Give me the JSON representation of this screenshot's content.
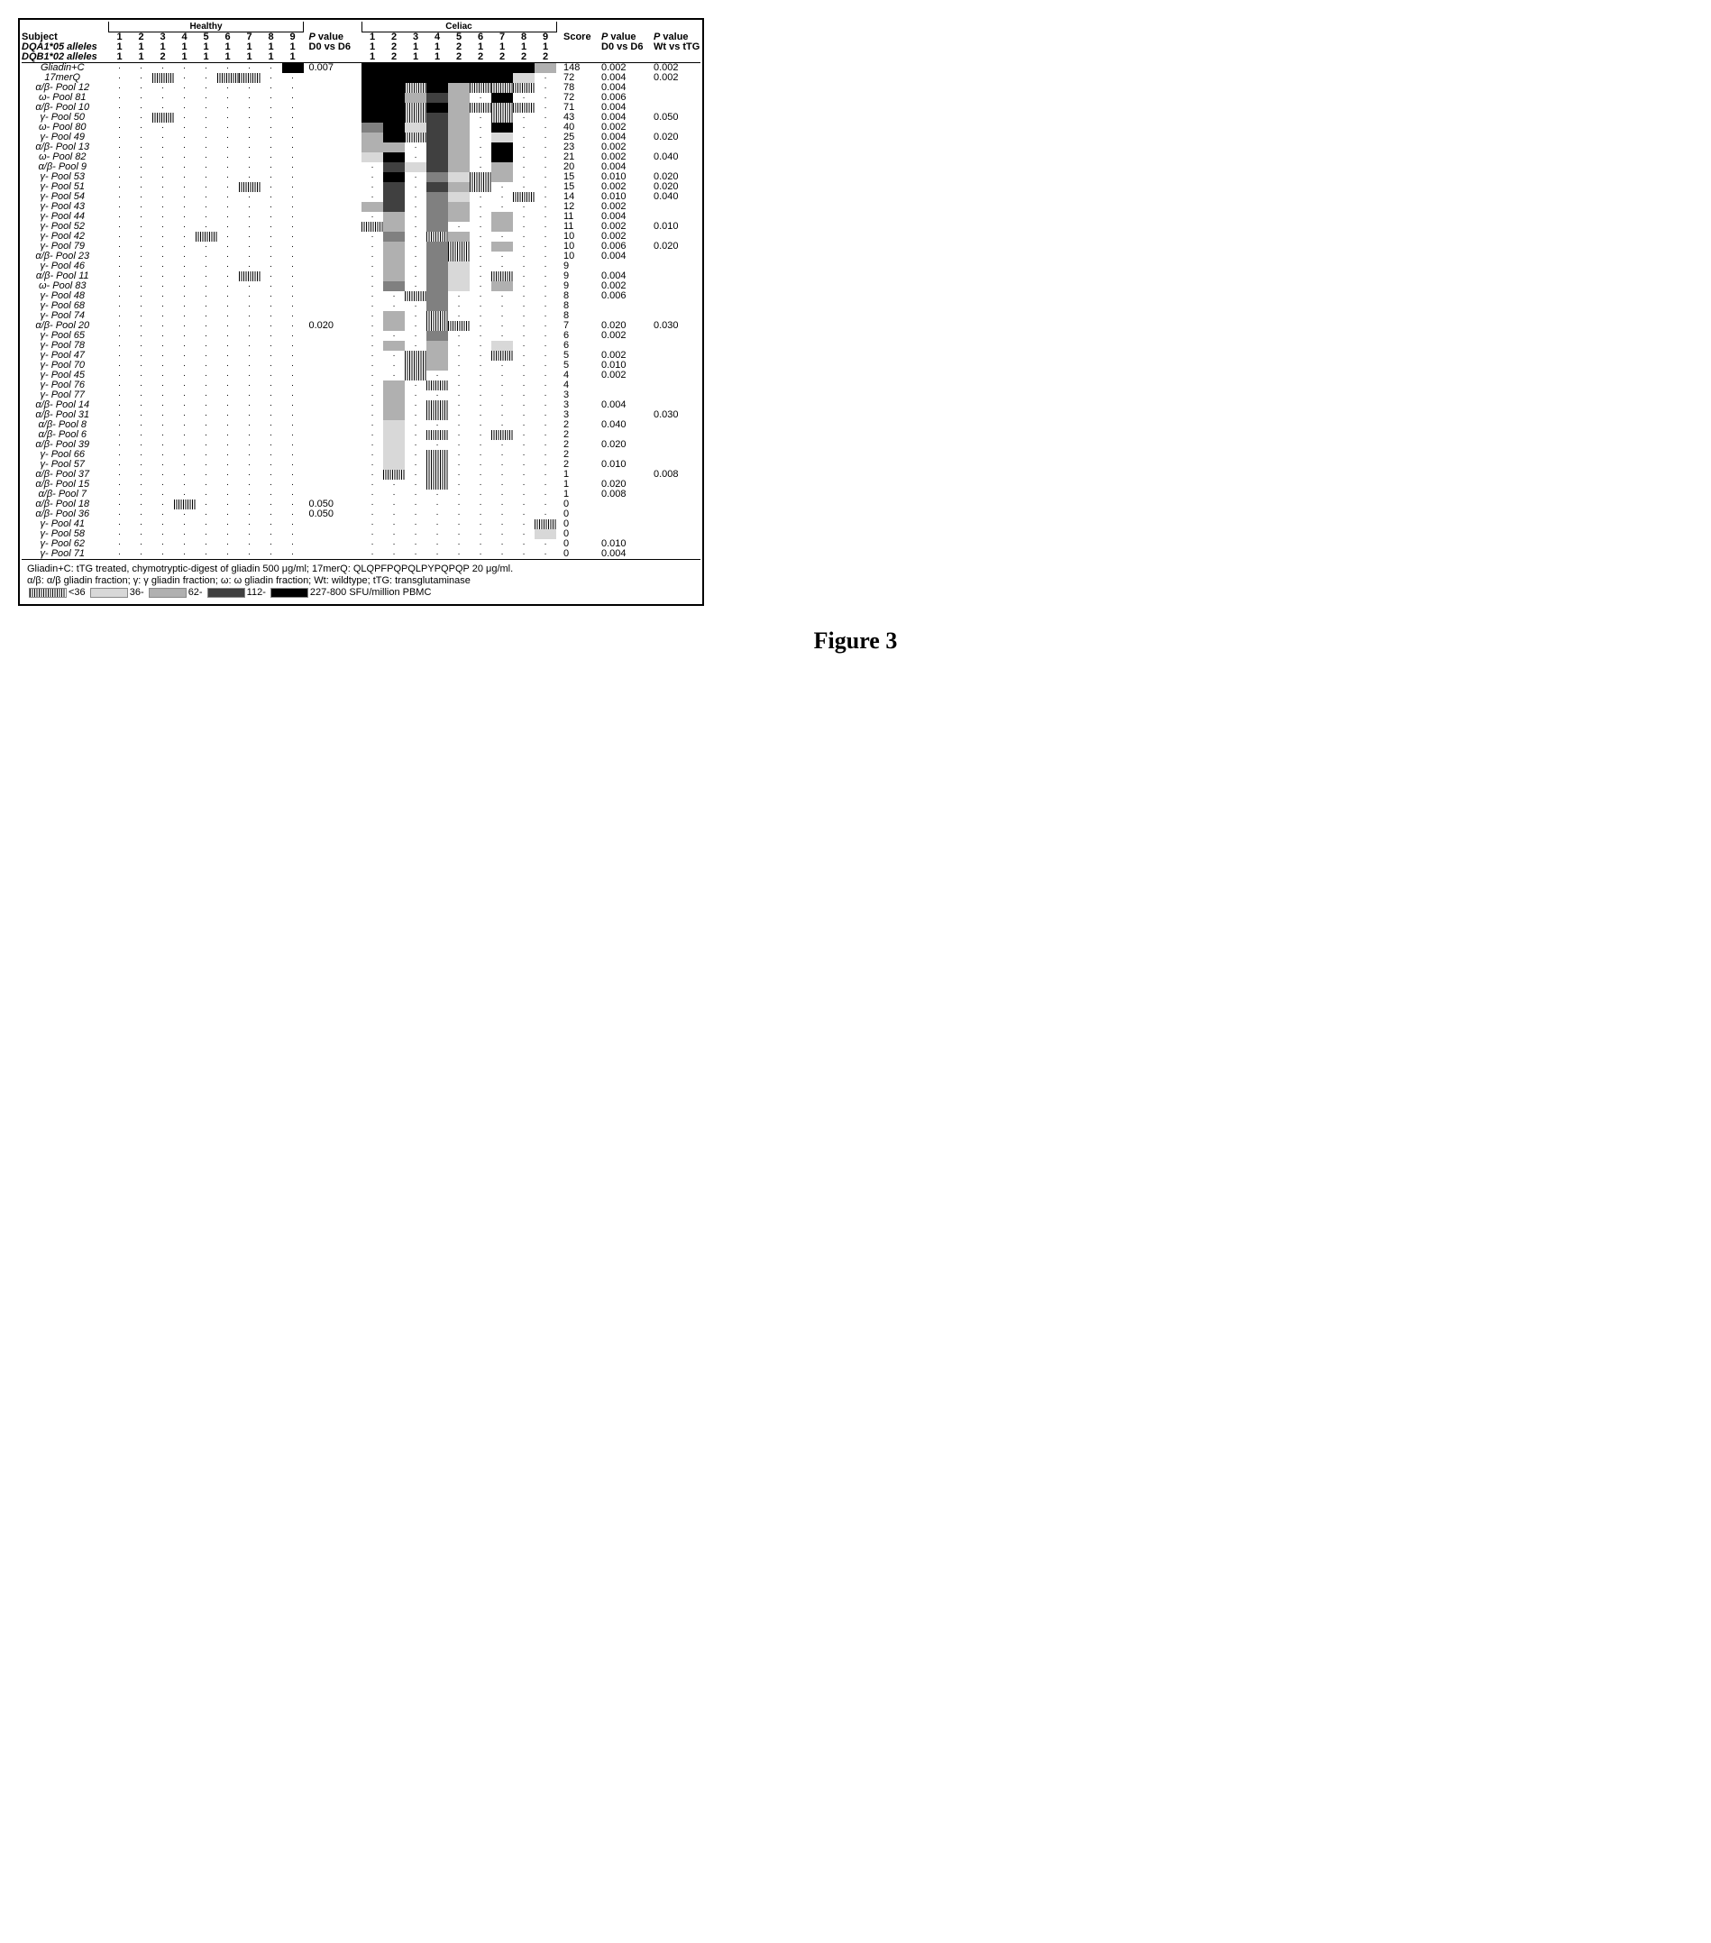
{
  "figure_label": "Figure 3",
  "shade_levels": {
    "0": "#ffffff",
    "1": "#f0f0f0",
    "2": "#d8d8d8",
    "3": "#b0b0b0",
    "4": "#808080",
    "5": "#404040",
    "6": "#000000"
  },
  "hatch_pattern": "repeating-linear-gradient(90deg, #000 0, #000 1px, #fff 1px, #fff 2.5px)",
  "groups": {
    "healthy": {
      "label": "Healthy",
      "subjects": [
        "1",
        "2",
        "3",
        "4",
        "5",
        "6",
        "7",
        "8",
        "9"
      ],
      "dqa": [
        "1",
        "1",
        "1",
        "1",
        "1",
        "1",
        "1",
        "1",
        "1"
      ],
      "dqb": [
        "1",
        "1",
        "2",
        "1",
        "1",
        "1",
        "1",
        "1",
        "1"
      ]
    },
    "celiac": {
      "label": "Celiac",
      "subjects": [
        "1",
        "2",
        "3",
        "4",
        "5",
        "6",
        "7",
        "8",
        "9"
      ],
      "dqa": [
        "1",
        "2",
        "1",
        "1",
        "2",
        "1",
        "1",
        "1",
        "1"
      ],
      "dqb": [
        "1",
        "2",
        "1",
        "1",
        "2",
        "2",
        "2",
        "2",
        "2"
      ]
    }
  },
  "header_rows": {
    "subject": "Subject",
    "dqa": "DQA1*05 alleles",
    "dqb": "DQB1*02 alleles"
  },
  "column_headers": {
    "score": "Score",
    "pval_healthy": "P value\nD0 vs D6",
    "pval_celiac_d0d6": "P value\nD0 vs D6",
    "pval_celiac_wt": "P value\nWt vs tTG"
  },
  "rows": [
    {
      "label": "Gliadin+C",
      "h": [
        0,
        0,
        0,
        0,
        0,
        0,
        0,
        0,
        6
      ],
      "hp": "0.007",
      "c": [
        6,
        6,
        6,
        6,
        6,
        6,
        6,
        6,
        3
      ],
      "score": "148",
      "p1": "0.002",
      "p2": "0.002"
    },
    {
      "label": "17merQ",
      "h": [
        0,
        0,
        "H",
        0,
        0,
        "H",
        "H",
        0,
        0
      ],
      "hp": "",
      "c": [
        6,
        6,
        6,
        6,
        6,
        6,
        6,
        2,
        0
      ],
      "score": "72",
      "p1": "0.004",
      "p2": "0.002"
    },
    {
      "label": "α/β- Pool 12",
      "h": [
        0,
        0,
        0,
        0,
        0,
        0,
        0,
        0,
        0
      ],
      "hp": "",
      "c": [
        6,
        6,
        "H",
        6,
        3,
        "H",
        "H",
        "H",
        0
      ],
      "score": "78",
      "p1": "0.004",
      "p2": ""
    },
    {
      "label": "ω- Pool 81",
      "h": [
        0,
        0,
        0,
        0,
        0,
        0,
        0,
        0,
        0
      ],
      "hp": "",
      "c": [
        6,
        6,
        3,
        5,
        3,
        0,
        6,
        0,
        0
      ],
      "score": "72",
      "p1": "0.006",
      "p2": ""
    },
    {
      "label": "α/β- Pool 10",
      "h": [
        0,
        0,
        0,
        0,
        0,
        0,
        0,
        0,
        0
      ],
      "hp": "",
      "c": [
        6,
        6,
        "H",
        6,
        3,
        "H",
        "H",
        "H",
        0
      ],
      "score": "71",
      "p1": "0.004",
      "p2": ""
    },
    {
      "label": "γ- Pool 50",
      "h": [
        0,
        0,
        "H",
        0,
        0,
        0,
        0,
        0,
        0
      ],
      "hp": "",
      "c": [
        6,
        6,
        "H",
        5,
        3,
        0,
        "H",
        0,
        0
      ],
      "score": "43",
      "p1": "0.004",
      "p2": "0.050"
    },
    {
      "label": "ω- Pool 80",
      "h": [
        0,
        0,
        0,
        0,
        0,
        0,
        0,
        0,
        0
      ],
      "hp": "",
      "c": [
        4,
        6,
        2,
        5,
        3,
        0,
        6,
        0,
        0
      ],
      "score": "40",
      "p1": "0.002",
      "p2": ""
    },
    {
      "label": "γ- Pool 49",
      "h": [
        0,
        0,
        0,
        0,
        0,
        0,
        0,
        0,
        0
      ],
      "hp": "",
      "c": [
        3,
        6,
        "H",
        5,
        3,
        0,
        2,
        0,
        0
      ],
      "score": "25",
      "p1": "0.004",
      "p2": "0.020"
    },
    {
      "label": "α/β- Pool 13",
      "h": [
        0,
        0,
        0,
        0,
        0,
        0,
        0,
        0,
        0
      ],
      "hp": "",
      "c": [
        3,
        3,
        0,
        5,
        3,
        0,
        6,
        0,
        0
      ],
      "score": "23",
      "p1": "0.002",
      "p2": ""
    },
    {
      "label": "ω- Pool 82",
      "h": [
        0,
        0,
        0,
        0,
        0,
        0,
        0,
        0,
        0
      ],
      "hp": "",
      "c": [
        2,
        6,
        0,
        5,
        3,
        0,
        6,
        0,
        0
      ],
      "score": "21",
      "p1": "0.002",
      "p2": "0.040"
    },
    {
      "label": "α/β- Pool 9",
      "h": [
        0,
        0,
        0,
        0,
        0,
        0,
        0,
        0,
        0
      ],
      "hp": "",
      "c": [
        0,
        5,
        2,
        5,
        3,
        0,
        3,
        0,
        0
      ],
      "score": "20",
      "p1": "0.004",
      "p2": ""
    },
    {
      "label": "γ- Pool 53",
      "h": [
        0,
        0,
        0,
        0,
        0,
        0,
        0,
        0,
        0
      ],
      "hp": "",
      "c": [
        0,
        6,
        0,
        4,
        2,
        "H",
        3,
        0,
        0
      ],
      "score": "15",
      "p1": "0.010",
      "p2": "0.020"
    },
    {
      "label": "γ- Pool 51",
      "h": [
        0,
        0,
        0,
        0,
        0,
        0,
        "H",
        0,
        0
      ],
      "hp": "",
      "c": [
        0,
        5,
        0,
        5,
        3,
        "H",
        0,
        0,
        0
      ],
      "score": "15",
      "p1": "0.002",
      "p2": "0.020"
    },
    {
      "label": "γ- Pool 54",
      "h": [
        0,
        0,
        0,
        0,
        0,
        0,
        0,
        0,
        0
      ],
      "hp": "",
      "c": [
        0,
        5,
        0,
        4,
        2,
        0,
        0,
        "H",
        0
      ],
      "score": "14",
      "p1": "0.010",
      "p2": "0.040"
    },
    {
      "label": "γ- Pool 43",
      "h": [
        0,
        0,
        0,
        0,
        0,
        0,
        0,
        0,
        0
      ],
      "hp": "",
      "c": [
        3,
        5,
        0,
        4,
        3,
        0,
        0,
        0,
        0
      ],
      "score": "12",
      "p1": "0.002",
      "p2": ""
    },
    {
      "label": "γ- Pool 44",
      "h": [
        0,
        0,
        0,
        0,
        0,
        0,
        0,
        0,
        0
      ],
      "hp": "",
      "c": [
        0,
        3,
        0,
        4,
        3,
        0,
        3,
        0,
        0
      ],
      "score": "11",
      "p1": "0.004",
      "p2": ""
    },
    {
      "label": "γ- Pool 52",
      "h": [
        0,
        0,
        0,
        0,
        0,
        0,
        0,
        0,
        0
      ],
      "hp": "",
      "c": [
        "H",
        3,
        0,
        4,
        0,
        0,
        3,
        0,
        0
      ],
      "score": "11",
      "p1": "0.002",
      "p2": "0.010"
    },
    {
      "label": "γ- Pool 42",
      "h": [
        0,
        0,
        0,
        0,
        "H",
        0,
        0,
        0,
        0
      ],
      "hp": "",
      "c": [
        0,
        4,
        0,
        "H",
        3,
        0,
        0,
        0,
        0
      ],
      "score": "10",
      "p1": "0.002",
      "p2": ""
    },
    {
      "label": "γ- Pool 79",
      "h": [
        0,
        0,
        0,
        0,
        0,
        0,
        0,
        0,
        0
      ],
      "hp": "",
      "c": [
        0,
        3,
        0,
        4,
        "H",
        0,
        3,
        0,
        0
      ],
      "score": "10",
      "p1": "0.006",
      "p2": "0.020"
    },
    {
      "label": "α/β- Pool 23",
      "h": [
        0,
        0,
        0,
        0,
        0,
        0,
        0,
        0,
        0
      ],
      "hp": "",
      "c": [
        0,
        3,
        0,
        4,
        "H",
        0,
        0,
        0,
        0
      ],
      "score": "10",
      "p1": "0.004",
      "p2": ""
    },
    {
      "label": "γ- Pool 46",
      "h": [
        0,
        0,
        0,
        0,
        0,
        0,
        0,
        0,
        0
      ],
      "hp": "",
      "c": [
        0,
        3,
        0,
        4,
        2,
        0,
        0,
        0,
        0
      ],
      "score": "9",
      "p1": "",
      "p2": ""
    },
    {
      "label": "α/β- Pool 11",
      "h": [
        0,
        0,
        0,
        0,
        0,
        0,
        "H",
        0,
        0
      ],
      "hp": "",
      "c": [
        0,
        3,
        0,
        4,
        2,
        0,
        "H",
        0,
        0
      ],
      "score": "9",
      "p1": "0.004",
      "p2": ""
    },
    {
      "label": "ω- Pool 83",
      "h": [
        0,
        0,
        0,
        0,
        0,
        0,
        0,
        0,
        0
      ],
      "hp": "",
      "c": [
        0,
        4,
        0,
        4,
        2,
        0,
        3,
        0,
        0
      ],
      "score": "9",
      "p1": "0.002",
      "p2": ""
    },
    {
      "label": "γ- Pool 48",
      "h": [
        0,
        0,
        0,
        0,
        0,
        0,
        0,
        0,
        0
      ],
      "hp": "",
      "c": [
        0,
        0,
        "H",
        4,
        0,
        0,
        0,
        0,
        0
      ],
      "score": "8",
      "p1": "0.006",
      "p2": ""
    },
    {
      "label": "γ- Pool 68",
      "h": [
        0,
        0,
        0,
        0,
        0,
        0,
        0,
        0,
        0
      ],
      "hp": "",
      "c": [
        0,
        0,
        0,
        4,
        0,
        0,
        0,
        0,
        0
      ],
      "score": "8",
      "p1": "",
      "p2": ""
    },
    {
      "label": "γ- Pool 74",
      "h": [
        0,
        0,
        0,
        0,
        0,
        0,
        0,
        0,
        0
      ],
      "hp": "",
      "c": [
        0,
        3,
        0,
        "H",
        0,
        0,
        0,
        0,
        0
      ],
      "score": "8",
      "p1": "",
      "p2": ""
    },
    {
      "label": "α/β- Pool 20",
      "h": [
        0,
        0,
        0,
        0,
        0,
        0,
        0,
        0,
        0
      ],
      "hp": "0.020",
      "c": [
        0,
        3,
        0,
        "H",
        "H",
        0,
        0,
        0,
        0
      ],
      "score": "7",
      "p1": "0.020",
      "p2": "0.030"
    },
    {
      "label": "γ- Pool 65",
      "h": [
        0,
        0,
        0,
        0,
        0,
        0,
        0,
        0,
        0
      ],
      "hp": "",
      "c": [
        0,
        0,
        0,
        4,
        0,
        0,
        0,
        0,
        0
      ],
      "score": "6",
      "p1": "0.002",
      "p2": ""
    },
    {
      "label": "γ- Pool 78",
      "h": [
        0,
        0,
        0,
        0,
        0,
        0,
        0,
        0,
        0
      ],
      "hp": "",
      "c": [
        0,
        3,
        0,
        3,
        0,
        0,
        2,
        0,
        0
      ],
      "score": "6",
      "p1": "",
      "p2": ""
    },
    {
      "label": "γ- Pool 47",
      "h": [
        0,
        0,
        0,
        0,
        0,
        0,
        0,
        0,
        0
      ],
      "hp": "",
      "c": [
        0,
        0,
        "H",
        3,
        0,
        0,
        "H",
        0,
        0
      ],
      "score": "5",
      "p1": "0.002",
      "p2": ""
    },
    {
      "label": "γ- Pool 70",
      "h": [
        0,
        0,
        0,
        0,
        0,
        0,
        0,
        0,
        0
      ],
      "hp": "",
      "c": [
        0,
        0,
        "H",
        3,
        0,
        0,
        0,
        0,
        0
      ],
      "score": "5",
      "p1": "0.010",
      "p2": ""
    },
    {
      "label": "γ- Pool 45",
      "h": [
        0,
        0,
        0,
        0,
        0,
        0,
        0,
        0,
        0
      ],
      "hp": "",
      "c": [
        0,
        0,
        "H",
        0,
        0,
        0,
        0,
        0,
        0
      ],
      "score": "4",
      "p1": "0.002",
      "p2": ""
    },
    {
      "label": "γ- Pool 76",
      "h": [
        0,
        0,
        0,
        0,
        0,
        0,
        0,
        0,
        0
      ],
      "hp": "",
      "c": [
        0,
        3,
        0,
        "H",
        0,
        0,
        0,
        0,
        0
      ],
      "score": "4",
      "p1": "",
      "p2": ""
    },
    {
      "label": "γ- Pool 77",
      "h": [
        0,
        0,
        0,
        0,
        0,
        0,
        0,
        0,
        0
      ],
      "hp": "",
      "c": [
        0,
        3,
        0,
        0,
        0,
        0,
        0,
        0,
        0
      ],
      "score": "3",
      "p1": "",
      "p2": ""
    },
    {
      "label": "α/β- Pool 14",
      "h": [
        0,
        0,
        0,
        0,
        0,
        0,
        0,
        0,
        0
      ],
      "hp": "",
      "c": [
        0,
        3,
        0,
        "H",
        0,
        0,
        0,
        0,
        0
      ],
      "score": "3",
      "p1": "0.004",
      "p2": ""
    },
    {
      "label": "α/β- Pool 31",
      "h": [
        0,
        0,
        0,
        0,
        0,
        0,
        0,
        0,
        0
      ],
      "hp": "",
      "c": [
        0,
        3,
        0,
        "H",
        0,
        0,
        0,
        0,
        0
      ],
      "score": "3",
      "p1": "",
      "p2": "0.030"
    },
    {
      "label": "α/β- Pool 8",
      "h": [
        0,
        0,
        0,
        0,
        0,
        0,
        0,
        0,
        0
      ],
      "hp": "",
      "c": [
        0,
        2,
        0,
        0,
        0,
        0,
        0,
        0,
        0
      ],
      "score": "2",
      "p1": "0.040",
      "p2": ""
    },
    {
      "label": "α/β- Pool 6",
      "h": [
        0,
        0,
        0,
        0,
        0,
        0,
        0,
        0,
        0
      ],
      "hp": "",
      "c": [
        0,
        2,
        0,
        "H",
        0,
        0,
        "H",
        0,
        0
      ],
      "score": "2",
      "p1": "",
      "p2": ""
    },
    {
      "label": "α/β- Pool 39",
      "h": [
        0,
        0,
        0,
        0,
        0,
        0,
        0,
        0,
        0
      ],
      "hp": "",
      "c": [
        0,
        2,
        0,
        0,
        0,
        0,
        0,
        0,
        0
      ],
      "score": "2",
      "p1": "0.020",
      "p2": ""
    },
    {
      "label": "γ- Pool 66",
      "h": [
        0,
        0,
        0,
        0,
        0,
        0,
        0,
        0,
        0
      ],
      "hp": "",
      "c": [
        0,
        2,
        0,
        "H",
        0,
        0,
        0,
        0,
        0
      ],
      "score": "2",
      "p1": "",
      "p2": ""
    },
    {
      "label": "γ- Pool 57",
      "h": [
        0,
        0,
        0,
        0,
        0,
        0,
        0,
        0,
        0
      ],
      "hp": "",
      "c": [
        0,
        2,
        0,
        "H",
        0,
        0,
        0,
        0,
        0
      ],
      "score": "2",
      "p1": "0.010",
      "p2": ""
    },
    {
      "label": "α/β- Pool 37",
      "h": [
        0,
        0,
        0,
        0,
        0,
        0,
        0,
        0,
        0
      ],
      "hp": "",
      "c": [
        0,
        "H",
        0,
        "H",
        0,
        0,
        0,
        0,
        0
      ],
      "score": "1",
      "p1": "",
      "p2": "0.008"
    },
    {
      "label": "α/β- Pool 15",
      "h": [
        0,
        0,
        0,
        0,
        0,
        0,
        0,
        0,
        0
      ],
      "hp": "",
      "c": [
        0,
        0,
        0,
        "H",
        0,
        0,
        0,
        0,
        0
      ],
      "score": "1",
      "p1": "0.020",
      "p2": ""
    },
    {
      "label": "α/β- Pool 7",
      "h": [
        0,
        0,
        0,
        0,
        0,
        0,
        0,
        0,
        0
      ],
      "hp": "",
      "c": [
        0,
        0,
        0,
        0,
        0,
        0,
        0,
        0,
        0
      ],
      "score": "1",
      "p1": "0.008",
      "p2": ""
    },
    {
      "label": "α/β- Pool 18",
      "h": [
        0,
        0,
        0,
        "H",
        0,
        0,
        0,
        0,
        0
      ],
      "hp": "0.050",
      "c": [
        0,
        0,
        0,
        0,
        0,
        0,
        0,
        0,
        0
      ],
      "score": "0",
      "p1": "",
      "p2": ""
    },
    {
      "label": "α/β- Pool 36",
      "h": [
        0,
        0,
        0,
        0,
        0,
        0,
        0,
        0,
        0
      ],
      "hp": "0.050",
      "c": [
        0,
        0,
        0,
        0,
        0,
        0,
        0,
        0,
        0
      ],
      "score": "0",
      "p1": "",
      "p2": ""
    },
    {
      "label": "γ- Pool 41",
      "h": [
        0,
        0,
        0,
        0,
        0,
        0,
        0,
        0,
        0
      ],
      "hp": "",
      "c": [
        0,
        0,
        0,
        0,
        0,
        0,
        0,
        0,
        "H"
      ],
      "score": "0",
      "p1": "",
      "p2": ""
    },
    {
      "label": "γ- Pool 58",
      "h": [
        0,
        0,
        0,
        0,
        0,
        0,
        0,
        0,
        0
      ],
      "hp": "",
      "c": [
        0,
        0,
        0,
        0,
        0,
        0,
        0,
        0,
        2
      ],
      "score": "0",
      "p1": "",
      "p2": ""
    },
    {
      "label": "γ- Pool 62",
      "h": [
        0,
        0,
        0,
        0,
        0,
        0,
        0,
        0,
        0
      ],
      "hp": "",
      "c": [
        0,
        0,
        0,
        0,
        0,
        0,
        0,
        0,
        0
      ],
      "score": "0",
      "p1": "0.010",
      "p2": ""
    },
    {
      "label": "γ- Pool 71",
      "h": [
        0,
        0,
        0,
        0,
        0,
        0,
        0,
        0,
        0
      ],
      "hp": "",
      "c": [
        0,
        0,
        0,
        0,
        0,
        0,
        0,
        0,
        0
      ],
      "score": "0",
      "p1": "0.004",
      "p2": ""
    }
  ],
  "footer": {
    "line1a": "Gliadin+C: tTG treated, chymotryptic-digest of gliadin 500 μg/ml; 17merQ: QLQPFPQPQLPYPQPQP 20 μg/ml.",
    "line2a": "α/β: α/β gliadin fraction; γ: γ gliadin fraction; ω: ω gliadin fraction; Wt: wildtype; tTG: transglutaminase",
    "legend_pre": "",
    "legend_labels": [
      "<36",
      "36-",
      "62-",
      "112-",
      "227-800 SFU/million PBMC"
    ]
  }
}
